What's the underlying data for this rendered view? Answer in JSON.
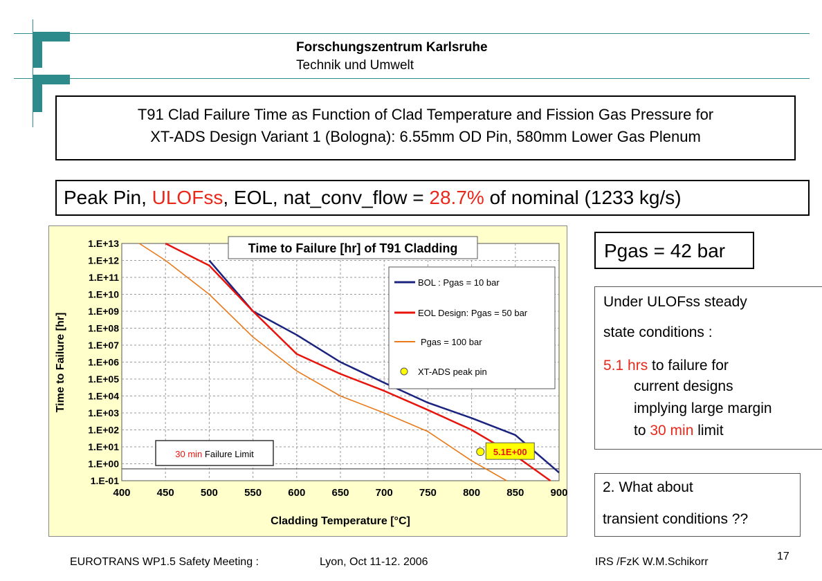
{
  "header": {
    "organization": "Forschungszentrum Karlsruhe",
    "department": "Technik und Umwelt"
  },
  "slide_title": {
    "line1": "T91 Clad Failure Time as Function of Clad Temperature and Fission Gas Pressure for",
    "line2": "XT-ADS Design Variant 1 (Bologna): 6.55mm OD Pin, 580mm Lower Gas Plenum"
  },
  "subtitle": {
    "part1": "Peak Pin, ",
    "part2": "ULOFss",
    "part3": ", EOL, nat_conv_flow = ",
    "part4": "28.7%",
    "part5": " of nominal (1233 kg/s)"
  },
  "pgas_label": "Pgas = 42 bar",
  "note": {
    "line1": "Under ULOFss steady",
    "line2": "state conditions :",
    "hrs_value": "5.1 hrs",
    "line3_rest": " to failure  for",
    "line4": "current designs",
    "line5": "implying large margin",
    "line6_to": "to ",
    "line6_min": "30 min",
    "line6_rest": " limit"
  },
  "question": {
    "line1": "2. What about",
    "line2": "transient conditions ??"
  },
  "footer": {
    "meeting": "EUROTRANS  WP1.5 Safety Meeting :",
    "place_date": "Lyon, Oct 11-12.  2006",
    "author": "IRS /FzK    W.M.Schikorr",
    "page_number": "17"
  },
  "colors": {
    "chart_background": "#ffffcc",
    "bol_line": "#1a237e",
    "eol_line": "#e8140c",
    "pgas100_line": "#e87a1a",
    "peak_pin_marker": "#ffff00",
    "highlight_red": "#e8281a",
    "logo_teal": "#2e8b8b"
  },
  "chart_data": {
    "type": "line",
    "title": "Time to Failure [hr] of T91 Cladding",
    "xlabel": "Cladding Temperature [°C]",
    "ylabel": "Time to Failure [hr]",
    "y_scale": "log",
    "xlim": [
      400,
      900
    ],
    "ylim": [
      0.1,
      10000000000000.0
    ],
    "x_ticks": [
      "400",
      "450",
      "500",
      "550",
      "600",
      "650",
      "700",
      "750",
      "800",
      "850",
      "900"
    ],
    "y_ticks": [
      "1.E-01",
      "1.E+00",
      "1.E+01",
      "1.E+02",
      "1.E+03",
      "1.E+04",
      "1.E+05",
      "1.E+06",
      "1.E+07",
      "1.E+08",
      "1.E+09",
      "1.E+10",
      "1.E+11",
      "1.E+12",
      "1.E+13"
    ],
    "grid": true,
    "legend_position": "right",
    "series": [
      {
        "name": "BOL : Pgas = 10 bar",
        "x": [
          500,
          550,
          600,
          650,
          700,
          750,
          800,
          850,
          900
        ],
        "y": [
          1000000000000.0,
          1000000000.0,
          40000000.0,
          1000000.0,
          60000.0,
          4000.0,
          500.0,
          50.0,
          0.3
        ]
      },
      {
        "name": "EOL Design: Pgas = 50 bar",
        "x": [
          450,
          500,
          550,
          600,
          650,
          700,
          750,
          800,
          850,
          890
        ],
        "y": [
          10000000000000.0,
          500000000000.0,
          1000000000.0,
          3000000.0,
          200000.0,
          20000.0,
          1500.0,
          100.0,
          3,
          0.1
        ]
      },
      {
        "name": "Pgas = 100 bar",
        "x": [
          420,
          450,
          500,
          550,
          600,
          650,
          700,
          750,
          800,
          840
        ],
        "y": [
          10000000000000.0,
          1000000000000.0,
          10000000000.0,
          30000000.0,
          300000.0,
          10000.0,
          1000.0,
          80.0,
          1.5,
          0.1
        ]
      }
    ],
    "marker": {
      "name": "XT-ADS peak pin",
      "x": 810,
      "y": 5.1,
      "label": "5.1E+00"
    },
    "reference_line": {
      "label_colored": "30 min",
      "label_rest": " Failure Limit",
      "y": 0.5
    }
  }
}
